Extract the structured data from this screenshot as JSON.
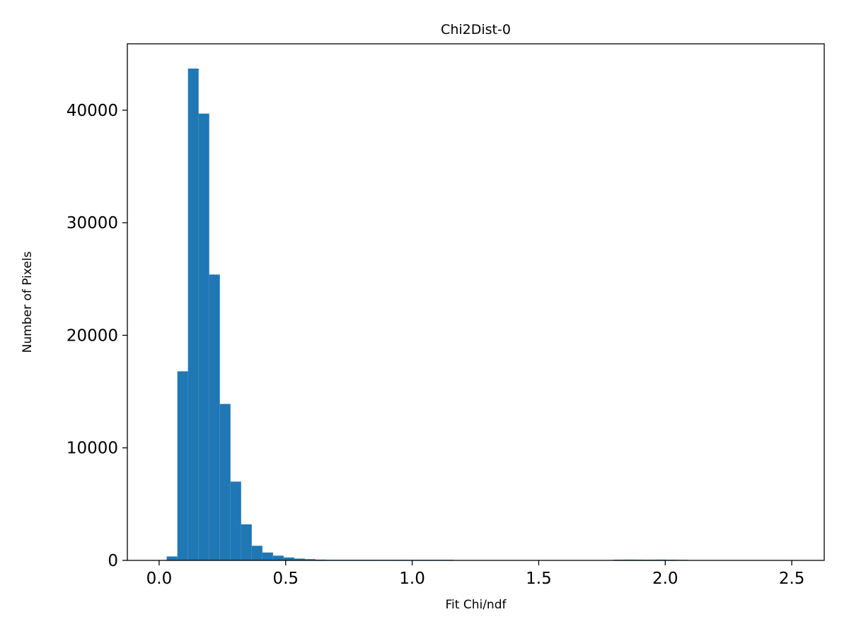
{
  "figure": {
    "background": "#ffffff"
  },
  "chart_data": {
    "type": "bar",
    "subtype": "histogram",
    "title": "Chi2Dist-0",
    "xlabel": "Fit Chi/ndf",
    "ylabel": "Number of Pixels",
    "bar_color": "#1f77b4",
    "spine_color": "#000000",
    "grid": false,
    "legend": null,
    "xlim": [
      -0.1256,
      2.6283
    ],
    "ylim": [
      0,
      45900
    ],
    "x_ticks": [
      0.0,
      0.5,
      1.0,
      1.5,
      2.0,
      2.5
    ],
    "x_tick_labels": [
      "0.0",
      "0.5",
      "1.0",
      "1.5",
      "2.0",
      "2.5"
    ],
    "y_ticks": [
      0,
      10000,
      20000,
      30000,
      40000
    ],
    "y_tick_labels": [
      "0",
      "10000",
      "20000",
      "30000",
      "40000"
    ],
    "bin_start": 0.03,
    "bin_width": 0.042,
    "counts": [
      350,
      16800,
      43700,
      39700,
      25400,
      13900,
      7000,
      3200,
      1300,
      700,
      420,
      260,
      160,
      110,
      70,
      50,
      35,
      25,
      15,
      10,
      8,
      5,
      3,
      2,
      2,
      1,
      1,
      0,
      0,
      0,
      0,
      0,
      0,
      0,
      0,
      0,
      0,
      0,
      0,
      0,
      0,
      0,
      60,
      70,
      65,
      60,
      70,
      60,
      40,
      0
    ]
  }
}
